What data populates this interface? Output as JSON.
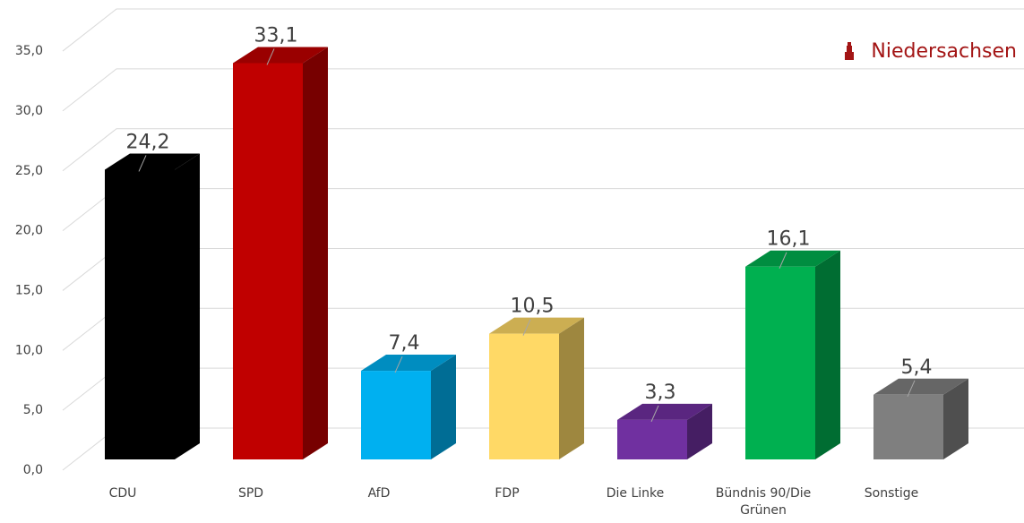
{
  "chart_data": {
    "type": "bar3d",
    "annotation": "Niedersachsen",
    "categories": [
      "CDU",
      "SPD",
      "AfD",
      "FDP",
      "Die Linke",
      "Bündnis 90/Die Grünen",
      "Sonstige"
    ],
    "values": [
      24.2,
      33.1,
      7.4,
      10.5,
      3.3,
      16.1,
      5.4
    ],
    "value_labels": [
      "24,2",
      "33,1",
      "7,4",
      "10,5",
      "3,3",
      "16,1",
      "5,4"
    ],
    "colors": [
      "#000000",
      "#c00000",
      "#00b0f0",
      "#ffd966",
      "#7030a0",
      "#00b050",
      "#7f7f7f"
    ],
    "ylim": [
      0,
      35
    ],
    "yticks": [
      {
        "value": 0,
        "label": "0,0"
      },
      {
        "value": 5,
        "label": "5,0"
      },
      {
        "value": 10,
        "label": "10,0"
      },
      {
        "value": 15,
        "label": "15,0"
      },
      {
        "value": 20,
        "label": "20,0"
      },
      {
        "value": 25,
        "label": "25,0"
      },
      {
        "value": 30,
        "label": "30,0"
      },
      {
        "value": 35,
        "label": "35,0"
      }
    ],
    "grid": true
  }
}
